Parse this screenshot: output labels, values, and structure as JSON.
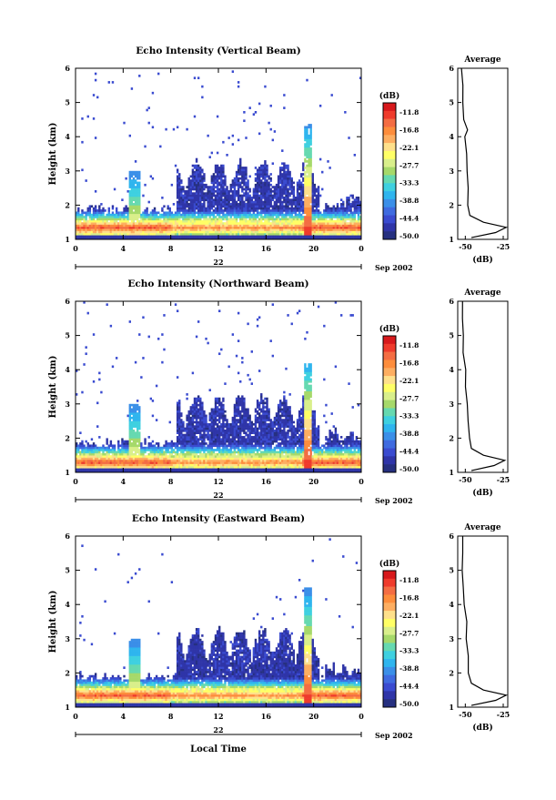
{
  "page": {
    "xlabel_bottom": "Local Time"
  },
  "colorbar": {
    "unit": "(dB)",
    "labels": [
      "-11.8",
      "-16.8",
      "-22.1",
      "-27.7",
      "-33.3",
      "-38.8",
      "-44.4",
      "-50.0"
    ],
    "colors": [
      "#d7191c",
      "#ef3b2c",
      "#f46d43",
      "#fd8d3c",
      "#fdae61",
      "#fee08b",
      "#ffff66",
      "#d9ef8b",
      "#a6d96a",
      "#66d9b0",
      "#3fd0e0",
      "#2fb5ee",
      "#3b8fe8",
      "#3f6be0",
      "#3a4bd0",
      "#2f35a8",
      "#263080"
    ]
  },
  "chart_data": [
    {
      "type": "heatmap",
      "title": "Echo Intensity (Vertical Beam)",
      "ylabel": "Height (km)",
      "xticks": [
        "0",
        "4",
        "8",
        "12",
        "16",
        "20",
        "0"
      ],
      "yticks": [
        "1",
        "2",
        "3",
        "4",
        "5",
        "6"
      ],
      "xlim": [
        0,
        24
      ],
      "ylim": [
        1,
        6
      ],
      "date_day": "22",
      "date_month": "Sep 2002",
      "features": {
        "surface_layer_km": 1.35,
        "spike_hour": 19.5,
        "spike_top_km": 4.4,
        "early_plume_hour": 5.0,
        "early_plume_top_km": 3.0,
        "cloud_top_km": 2.8
      },
      "average": {
        "title": "Average",
        "xlabel": "(dB)",
        "xticks": [
          "-50",
          "-25"
        ],
        "xlim": [
          -55,
          -22
        ],
        "height": [
          1.05,
          1.2,
          1.35,
          1.5,
          1.7,
          2.0,
          2.5,
          3.0,
          3.5,
          4.0,
          4.2,
          4.5,
          5.0,
          5.5,
          6.0
        ],
        "db": [
          -46,
          -30,
          -23,
          -38,
          -47,
          -48,
          -48.5,
          -49,
          -49.5,
          -50.5,
          -48,
          -51,
          -51.5,
          -52,
          -52
        ]
      }
    },
    {
      "type": "heatmap",
      "title": "Echo Intensity (Northward Beam)",
      "ylabel": "Height (km)",
      "xticks": [
        "0",
        "4",
        "8",
        "12",
        "16",
        "20",
        "0"
      ],
      "yticks": [
        "1",
        "2",
        "3",
        "4",
        "5",
        "6"
      ],
      "xlim": [
        0,
        24
      ],
      "ylim": [
        1,
        6
      ],
      "date_day": "22",
      "date_month": "Sep 2002",
      "features": {
        "surface_layer_km": 1.3,
        "spike_hour": 19.5,
        "spike_top_km": 4.2,
        "early_plume_hour": 5.0,
        "early_plume_top_km": 3.0,
        "cloud_top_km": 2.8
      },
      "average": {
        "title": "Average",
        "xlabel": "(dB)",
        "xticks": [
          "-50",
          "-25"
        ],
        "xlim": [
          -55,
          -22
        ],
        "height": [
          1.05,
          1.2,
          1.35,
          1.5,
          1.7,
          2.0,
          2.5,
          3.0,
          3.5,
          4.0,
          4.5,
          5.0,
          5.5,
          6.0
        ],
        "db": [
          -46,
          -31,
          -24,
          -38,
          -46,
          -47.5,
          -48,
          -49,
          -49.5,
          -50,
          -51,
          -51.5,
          -52,
          -52
        ]
      }
    },
    {
      "type": "heatmap",
      "title": "Echo Intensity (Eastward Beam)",
      "ylabel": "Height (km)",
      "xticks": [
        "0",
        "4",
        "8",
        "12",
        "16",
        "20",
        "0"
      ],
      "yticks": [
        "1",
        "2",
        "3",
        "4",
        "5",
        "6"
      ],
      "xlim": [
        0,
        24
      ],
      "ylim": [
        1,
        6
      ],
      "date_day": "22",
      "date_month": "Sep 2002",
      "features": {
        "surface_layer_km": 1.35,
        "spike_hour": 19.5,
        "spike_top_km": 4.5,
        "early_plume_hour": 5.0,
        "early_plume_top_km": 3.0,
        "cloud_top_km": 2.8
      },
      "average": {
        "title": "Average",
        "xlabel": "(dB)",
        "xticks": [
          "-50",
          "-25"
        ],
        "xlim": [
          -55,
          -22
        ],
        "height": [
          1.05,
          1.2,
          1.35,
          1.5,
          1.7,
          2.0,
          2.5,
          3.0,
          3.5,
          4.0,
          4.5,
          5.0,
          5.5,
          6.0
        ],
        "db": [
          -46,
          -30,
          -23,
          -38,
          -46,
          -47.5,
          -48,
          -49,
          -49.5,
          -50.5,
          -51,
          -51.5,
          -52,
          -52
        ]
      }
    }
  ]
}
